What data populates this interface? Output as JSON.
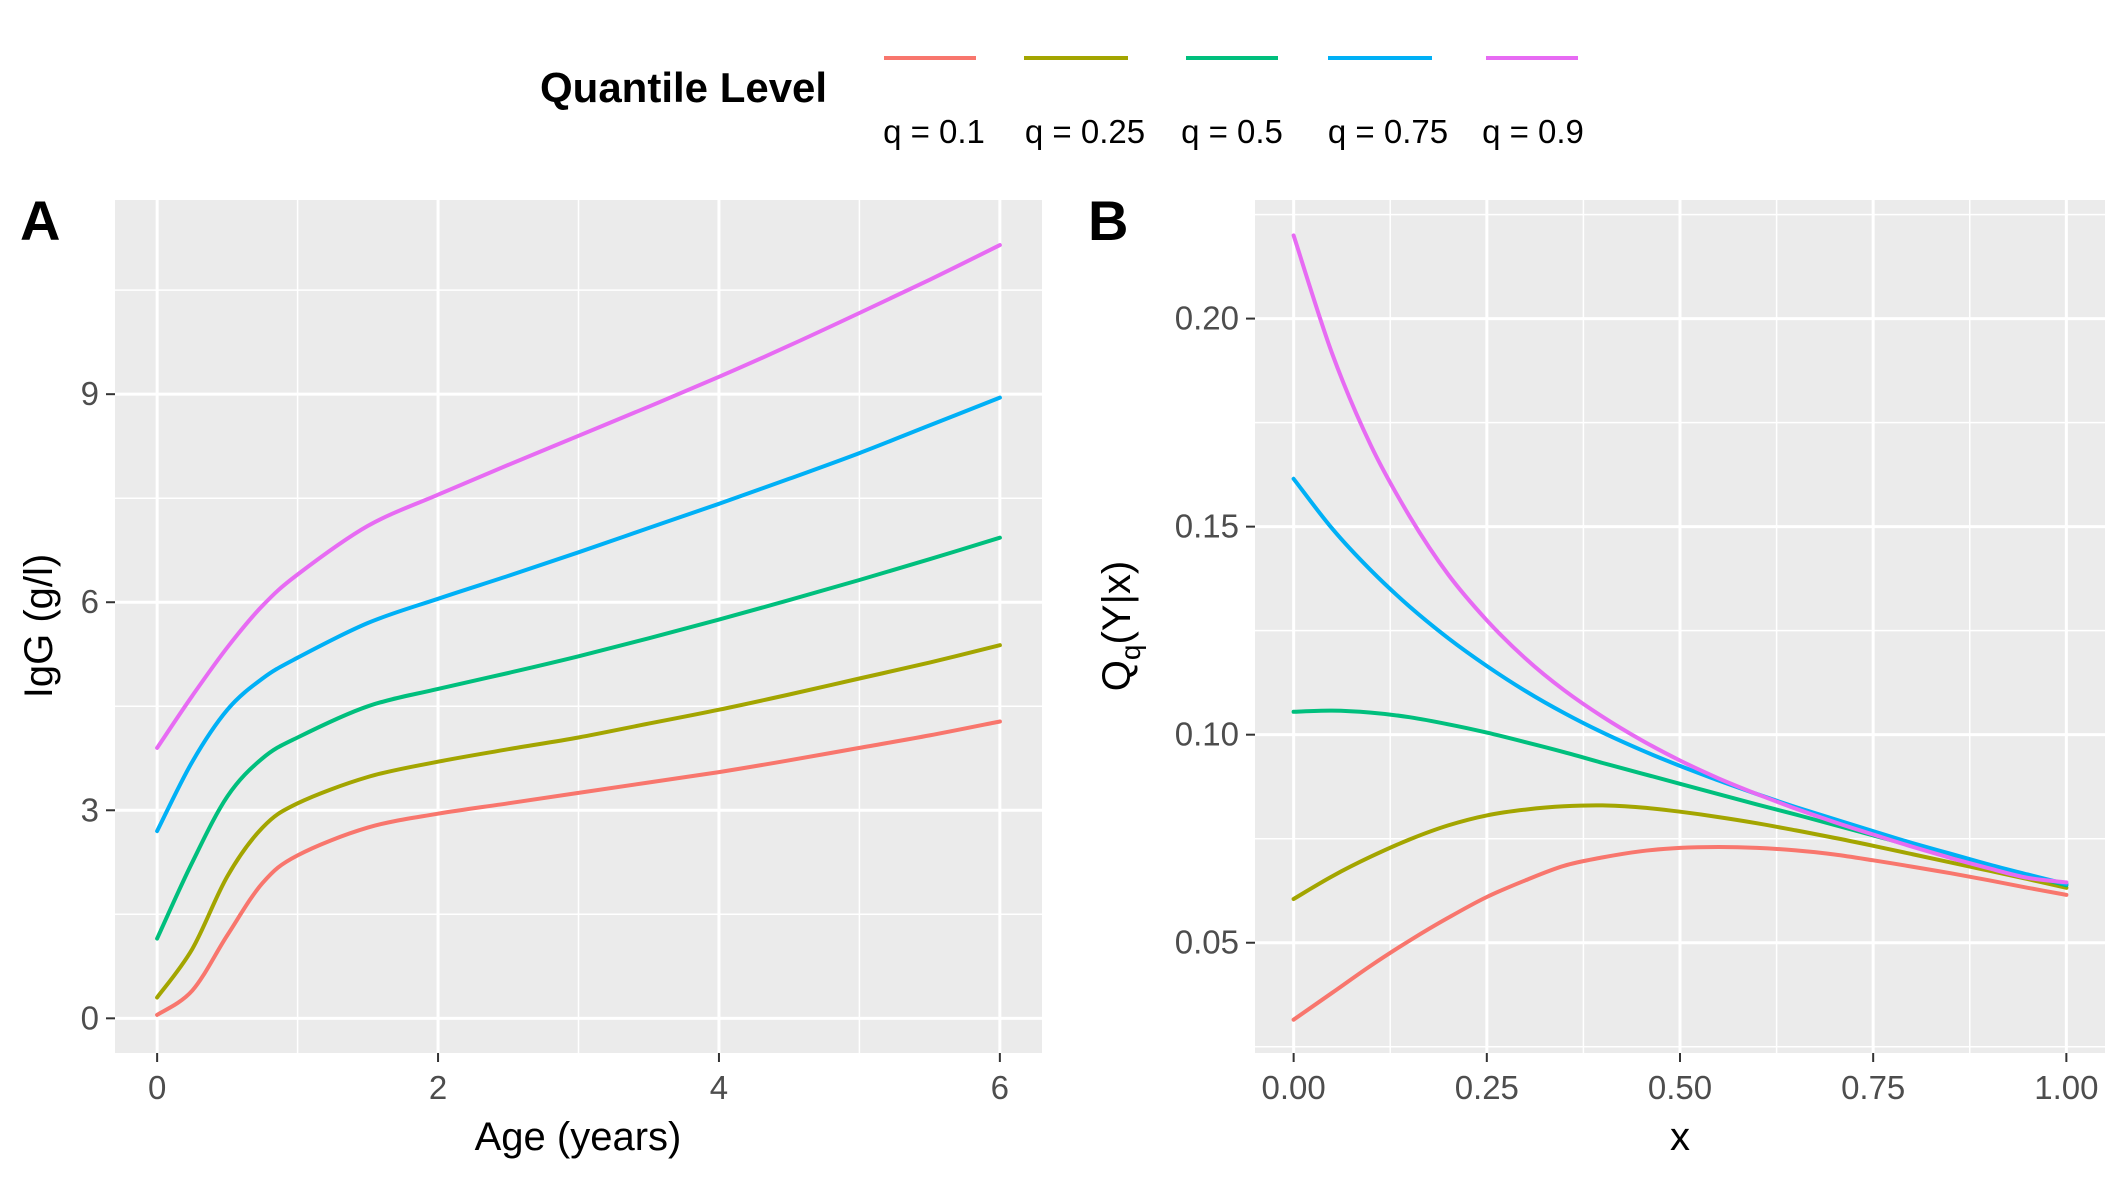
{
  "legend": {
    "title": "Quantile Level",
    "entries": [
      {
        "label": "q = 0.1",
        "color": "#f8766d"
      },
      {
        "label": "q = 0.25",
        "color": "#a3a500"
      },
      {
        "label": "q = 0.5",
        "color": "#00bf7d"
      },
      {
        "label": "q = 0.75",
        "color": "#00b0f6"
      },
      {
        "label": "q = 0.9",
        "color": "#e76bf3"
      }
    ]
  },
  "chart_data": [
    {
      "panel": "A",
      "type": "line",
      "xlabel": "Age (years)",
      "ylabel": "IgG (g/l)",
      "xlim": [
        -0.3,
        6.3
      ],
      "ylim": [
        -0.5,
        11.8
      ],
      "x_major_ticks": [
        0,
        2,
        4,
        6
      ],
      "x_minor_ticks": [
        1,
        3,
        5
      ],
      "y_major_ticks": [
        0,
        3,
        6,
        9
      ],
      "y_minor_ticks": [
        1.5,
        4.5,
        7.5,
        10.5
      ],
      "x_tick_labels": [
        "0",
        "2",
        "4",
        "6"
      ],
      "y_tick_labels": [
        "0",
        "3",
        "6",
        "9"
      ],
      "x": [
        0,
        0.25,
        0.5,
        0.75,
        1,
        1.5,
        2,
        2.5,
        3,
        3.5,
        4,
        4.5,
        5,
        5.5,
        6
      ],
      "series": [
        {
          "name": "q = 0.1",
          "color": "#f8766d",
          "values": [
            0.05,
            0.4,
            1.2,
            1.95,
            2.35,
            2.75,
            2.95,
            3.1,
            3.25,
            3.4,
            3.55,
            3.72,
            3.9,
            4.08,
            4.28
          ]
        },
        {
          "name": "q = 0.25",
          "color": "#a3a500",
          "values": [
            0.3,
            1.0,
            2.05,
            2.75,
            3.1,
            3.48,
            3.7,
            3.88,
            4.05,
            4.25,
            4.45,
            4.67,
            4.9,
            5.13,
            5.38
          ]
        },
        {
          "name": "q = 0.5",
          "color": "#00bf7d",
          "values": [
            1.15,
            2.25,
            3.2,
            3.75,
            4.05,
            4.5,
            4.75,
            4.98,
            5.22,
            5.48,
            5.75,
            6.03,
            6.32,
            6.62,
            6.93
          ]
        },
        {
          "name": "q = 0.75",
          "color": "#00b0f6",
          "values": [
            2.7,
            3.7,
            4.45,
            4.9,
            5.2,
            5.7,
            6.05,
            6.38,
            6.72,
            7.07,
            7.42,
            7.78,
            8.15,
            8.55,
            8.95
          ]
        },
        {
          "name": "q = 0.9",
          "color": "#e76bf3",
          "values": [
            3.9,
            4.65,
            5.35,
            5.95,
            6.4,
            7.1,
            7.55,
            7.98,
            8.4,
            8.82,
            9.25,
            9.7,
            10.17,
            10.65,
            11.15
          ]
        }
      ]
    },
    {
      "panel": "B",
      "type": "line",
      "xlabel": "x",
      "ylabel_main": "Q",
      "ylabel_sub": "q",
      "ylabel_rest": "(Y|x)",
      "xlim": [
        -0.05,
        1.05
      ],
      "ylim": [
        0.0235,
        0.2285
      ],
      "x_major_ticks": [
        0,
        0.25,
        0.5,
        0.75,
        1.0
      ],
      "x_minor_ticks": [
        0.125,
        0.375,
        0.625,
        0.875
      ],
      "y_major_ticks": [
        0.05,
        0.1,
        0.15,
        0.2
      ],
      "y_minor_ticks": [
        0.025,
        0.075,
        0.125,
        0.175,
        0.225
      ],
      "x_tick_labels": [
        "0.00",
        "0.25",
        "0.50",
        "0.75",
        "1.00"
      ],
      "y_tick_labels": [
        "0.05",
        "0.10",
        "0.15",
        "0.20"
      ],
      "x": [
        0,
        0.05,
        0.1,
        0.15,
        0.2,
        0.25,
        0.3,
        0.35,
        0.4,
        0.45,
        0.5,
        0.55,
        0.6,
        0.65,
        0.7,
        0.75,
        0.8,
        0.85,
        0.9,
        0.95,
        1.0
      ],
      "series": [
        {
          "name": "q = 0.1",
          "color": "#f8766d",
          "values": [
            0.0315,
            0.038,
            0.0445,
            0.0505,
            0.056,
            0.061,
            0.065,
            0.0685,
            0.0705,
            0.072,
            0.0728,
            0.073,
            0.0728,
            0.0722,
            0.0712,
            0.0698,
            0.0683,
            0.0667,
            0.065,
            0.0632,
            0.0615
          ]
        },
        {
          "name": "q = 0.25",
          "color": "#a3a500",
          "values": [
            0.0605,
            0.066,
            0.0707,
            0.0748,
            0.0782,
            0.0806,
            0.082,
            0.0828,
            0.083,
            0.0825,
            0.0815,
            0.0802,
            0.0787,
            0.077,
            0.0752,
            0.0733,
            0.0713,
            0.0693,
            0.0673,
            0.0653,
            0.0632
          ]
        },
        {
          "name": "q = 0.5",
          "color": "#00bf7d",
          "values": [
            0.1055,
            0.1058,
            0.1053,
            0.1042,
            0.1025,
            0.1005,
            0.0982,
            0.0958,
            0.0932,
            0.0907,
            0.0882,
            0.0857,
            0.0832,
            0.0808,
            0.0783,
            0.0758,
            0.0733,
            0.0708,
            0.0685,
            0.0662,
            0.0638
          ]
        },
        {
          "name": "q = 0.75",
          "color": "#00b0f6",
          "values": [
            0.1615,
            0.1495,
            0.1395,
            0.1308,
            0.1232,
            0.1165,
            0.1105,
            0.1052,
            0.1005,
            0.0963,
            0.0925,
            0.089,
            0.0857,
            0.0826,
            0.0797,
            0.0768,
            0.074,
            0.0714,
            0.0688,
            0.0664,
            0.0641
          ]
        },
        {
          "name": "q = 0.9",
          "color": "#e76bf3",
          "values": [
            0.22,
            0.1915,
            0.1695,
            0.1525,
            0.1385,
            0.1275,
            0.1183,
            0.1107,
            0.1043,
            0.0987,
            0.0938,
            0.0895,
            0.0857,
            0.0822,
            0.079,
            0.076,
            0.0731,
            0.0704,
            0.0679,
            0.0656,
            0.0645
          ]
        }
      ]
    }
  ]
}
